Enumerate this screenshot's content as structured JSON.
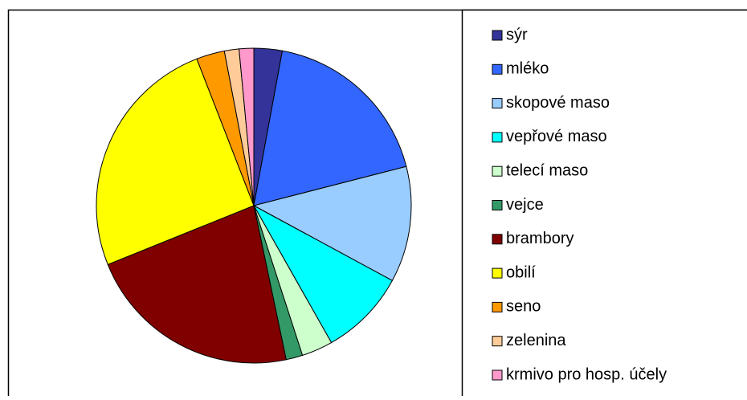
{
  "chart_data": {
    "type": "pie",
    "categories": [
      "sýr",
      "mléko",
      "skopové maso",
      "vepřové maso",
      "telecí maso",
      "vejce",
      "brambory",
      "obilí",
      "seno",
      "zelenina",
      "krmivo pro hosp. účely"
    ],
    "values": [
      2.9,
      18.1,
      11.9,
      8.9,
      3.2,
      1.7,
      22.2,
      25.2,
      2.9,
      1.5,
      1.5
    ],
    "colors": [
      "#333399",
      "#3366ff",
      "#99ccff",
      "#00ffff",
      "#ccffcc",
      "#339966",
      "#800000",
      "#ffff00",
      "#ff9900",
      "#ffcc99",
      "#ff99cc"
    ],
    "legend": "right"
  }
}
